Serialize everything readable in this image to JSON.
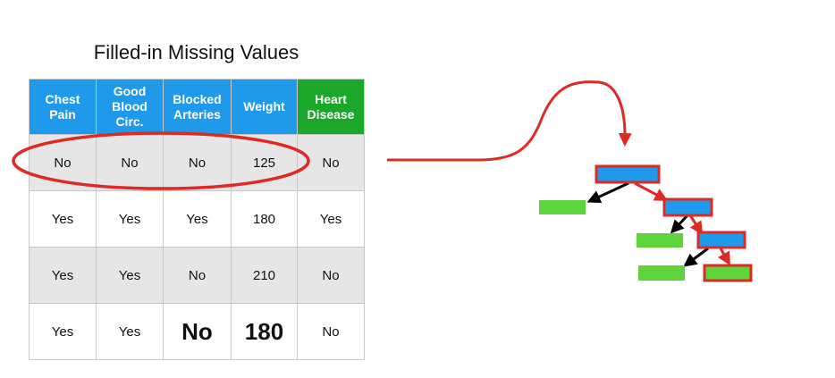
{
  "title": "Filled-in Missing Values",
  "table": {
    "headers": [
      {
        "label": "Chest\nPain",
        "outcome": false
      },
      {
        "label": "Good\nBlood\nCirc.",
        "outcome": false
      },
      {
        "label": "Blocked\nArteries",
        "outcome": false
      },
      {
        "label": "Weight",
        "outcome": false
      },
      {
        "label": "Heart\nDisease",
        "outcome": true
      }
    ],
    "rows": [
      {
        "cells": [
          "No",
          "No",
          "No",
          "125",
          "No"
        ],
        "shaded": true,
        "highlighted": true,
        "filled_in": []
      },
      {
        "cells": [
          "Yes",
          "Yes",
          "Yes",
          "180",
          "Yes"
        ],
        "shaded": false,
        "highlighted": false,
        "filled_in": []
      },
      {
        "cells": [
          "Yes",
          "Yes",
          "No",
          "210",
          "No"
        ],
        "shaded": true,
        "highlighted": false,
        "filled_in": []
      },
      {
        "cells": [
          "Yes",
          "Yes",
          "No",
          "180",
          "No"
        ],
        "shaded": false,
        "highlighted": false,
        "filled_in": [
          2,
          3
        ]
      }
    ]
  },
  "colors": {
    "header": "#1f9aea",
    "outcome_header": "#1aa72a",
    "highlight": "#dd2a24",
    "tree_node": "#1f9aea",
    "tree_leaf": "#5dd33c",
    "row_shade": "#e6e6e6"
  },
  "tree": {
    "path_to_leaf": "right-right-right",
    "leaves_on_path": 1
  }
}
